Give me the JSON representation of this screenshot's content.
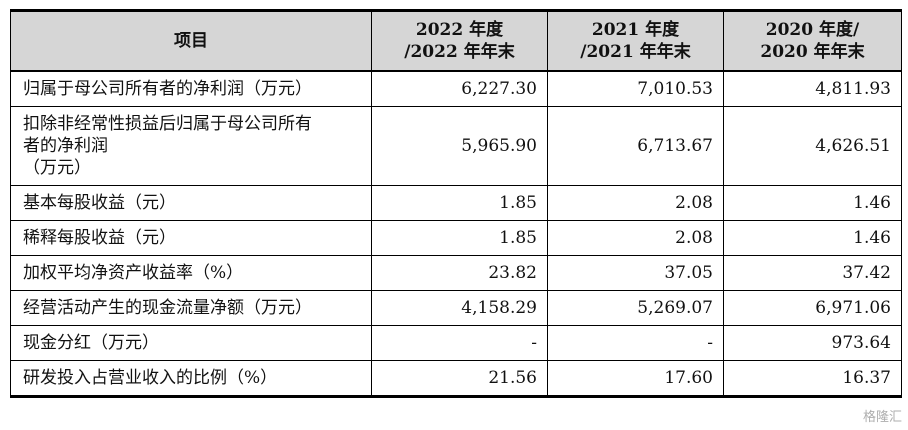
{
  "header": {
    "item": "项目",
    "col2022_l1": "2022 年度",
    "col2022_l2": "/2022 年年末",
    "col2021_l1": "2021 年度",
    "col2021_l2": "/2021 年年末",
    "col2020_l1": "2020 年度/",
    "col2020_l2": "2020 年年末"
  },
  "rows": [
    {
      "label": "归属于母公司所有者的净利润（万元）",
      "v2022": "6,227.30",
      "v2021": "7,010.53",
      "v2020": "4,811.93"
    },
    {
      "label_l1": "扣除非经常性损益后归属于母公司所有",
      "label_l2": "者的净利润",
      "label_l3": "（万元）",
      "v2022": "5,965.90",
      "v2021": "6,713.67",
      "v2020": "4,626.51"
    },
    {
      "label": "基本每股收益（元）",
      "v2022": "1.85",
      "v2021": "2.08",
      "v2020": "1.46"
    },
    {
      "label": "稀释每股收益（元）",
      "v2022": "1.85",
      "v2021": "2.08",
      "v2020": "1.46"
    },
    {
      "label": "加权平均净资产收益率（%）",
      "v2022": "23.82",
      "v2021": "37.05",
      "v2020": "37.42"
    },
    {
      "label": "经营活动产生的现金流量净额（万元）",
      "v2022": "4,158.29",
      "v2021": "5,269.07",
      "v2020": "6,971.06"
    },
    {
      "label": "现金分红（万元）",
      "v2022": "-",
      "v2021": "-",
      "v2020": "973.64"
    },
    {
      "label": "研发投入占营业收入的比例（%）",
      "v2022": "21.56",
      "v2021": "17.60",
      "v2020": "16.37"
    }
  ],
  "watermark": "格隆汇"
}
